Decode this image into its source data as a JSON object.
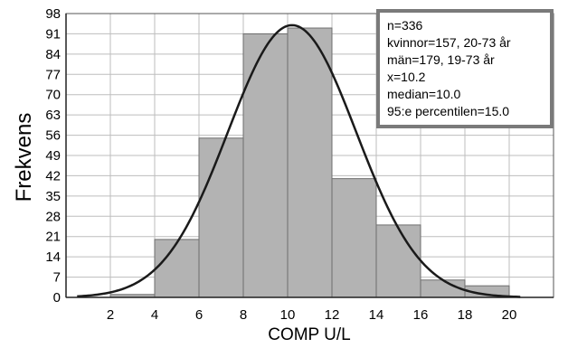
{
  "chart_data": {
    "type": "bar",
    "title": "",
    "xlabel": "COMP U/L",
    "ylabel": "Frekvens",
    "x_ticks": [
      2,
      4,
      6,
      8,
      10,
      12,
      14,
      16,
      18,
      20
    ],
    "y_ticks": [
      0,
      7,
      14,
      21,
      28,
      35,
      42,
      49,
      56,
      63,
      70,
      77,
      84,
      91,
      98
    ],
    "xlim": [
      0,
      22
    ],
    "ylim": [
      0,
      98
    ],
    "grid": true,
    "bins": [
      {
        "start": 2,
        "end": 4,
        "value": 1
      },
      {
        "start": 4,
        "end": 6,
        "value": 20
      },
      {
        "start": 6,
        "end": 8,
        "value": 55
      },
      {
        "start": 8,
        "end": 10,
        "value": 91
      },
      {
        "start": 10,
        "end": 12,
        "value": 93
      },
      {
        "start": 12,
        "end": 14,
        "value": 41
      },
      {
        "start": 14,
        "end": 16,
        "value": 25
      },
      {
        "start": 16,
        "end": 18,
        "value": 6
      },
      {
        "start": 18,
        "end": 20,
        "value": 4
      }
    ],
    "curve": {
      "type": "normal",
      "peak_x": 10.2,
      "peak_y": 94,
      "x_range": [
        0.5,
        20.5
      ]
    },
    "legend_position": "top-right",
    "annotations": [
      "n=336",
      "kvinnor=157, 20-73 år",
      "män=179, 19-73 år",
      "x=10.2",
      "median=10.0",
      "95:e percentilen=15.0"
    ],
    "colors": {
      "bar": "#b3b3b3",
      "bar_edge": "#6e6e6e",
      "curve": "#1a1a1a",
      "grid": "#bdbdbd",
      "legend_border": "#7a7a7a"
    }
  }
}
